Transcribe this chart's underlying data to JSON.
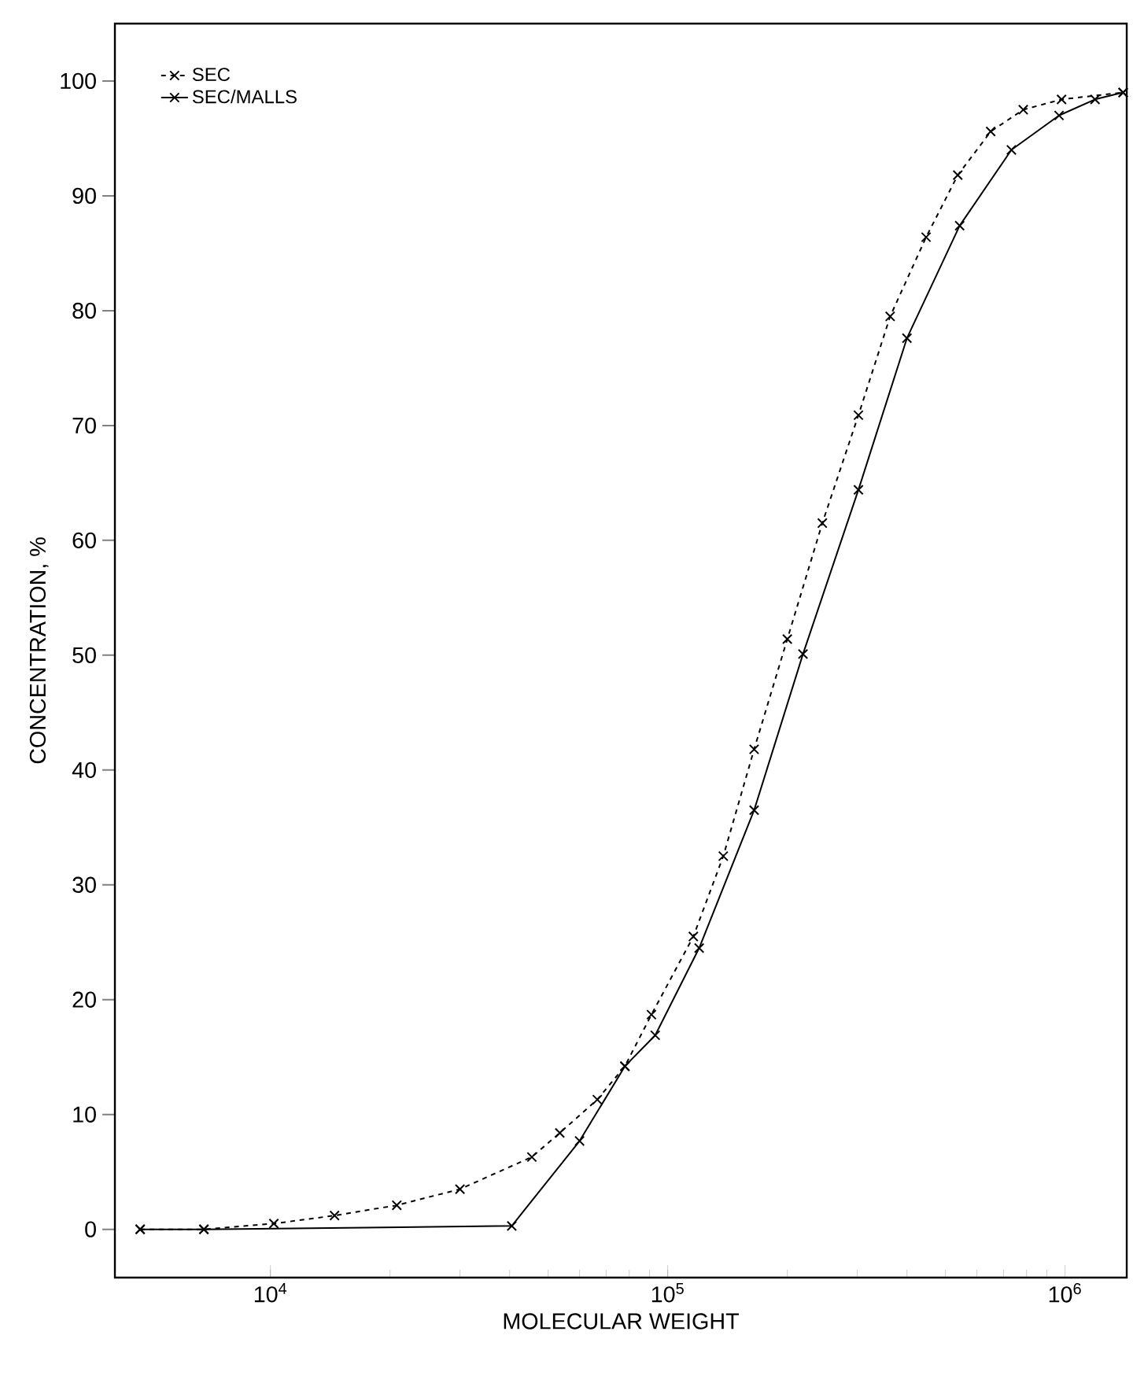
{
  "chart_data": {
    "type": "line",
    "xlabel": "MOLECULAR WEIGHT",
    "ylabel": "CONCENTRATION, %",
    "log": "x",
    "xlim": [
      4060,
      1430000
    ],
    "ylim": [
      -4.2,
      105
    ],
    "xticks": [
      {
        "value": 10000,
        "label": "10$^{4}$"
      },
      {
        "value": 100000,
        "label": "10$^{5}$"
      },
      {
        "value": 1000000,
        "label": "10$^{6}$"
      }
    ],
    "yticks": [
      0,
      10,
      20,
      30,
      40,
      50,
      60,
      70,
      80,
      90,
      100
    ],
    "legend": "top left",
    "marker": "cross",
    "grid": false,
    "series": [
      {
        "name": "SEC",
        "color": "#000000",
        "line_style": "dashed",
        "x": [
          4700,
          6800,
          10200,
          14500,
          20800,
          30000,
          45500,
          53500,
          66500,
          78000,
          91000,
          116000,
          138000,
          165000,
          200000,
          245000,
          302000,
          363000,
          447000,
          537000,
          650000,
          785000,
          980000,
          1400000
        ],
        "values": [
          0,
          0,
          0.5,
          1.2,
          2.1,
          3.5,
          6.3,
          8.4,
          11.3,
          14.2,
          18.7,
          25.5,
          32.5,
          41.8,
          51.4,
          61.5,
          70.9,
          79.5,
          86.4,
          91.8,
          95.6,
          97.5,
          98.4,
          99
        ]
      },
      {
        "name": "SEC/MALLS",
        "color": "#000000",
        "line_style": "solid",
        "x": [
          4700,
          6800,
          40500,
          60000,
          78000,
          93000,
          120000,
          165000,
          219000,
          302000,
          400000,
          543000,
          733000,
          966000,
          1190000,
          1400000
        ],
        "values": [
          0,
          0,
          0.3,
          7.7,
          14.2,
          16.9,
          24.5,
          36.5,
          50.1,
          64.4,
          77.6,
          87.4,
          94,
          97,
          98.4,
          99
        ]
      }
    ]
  }
}
